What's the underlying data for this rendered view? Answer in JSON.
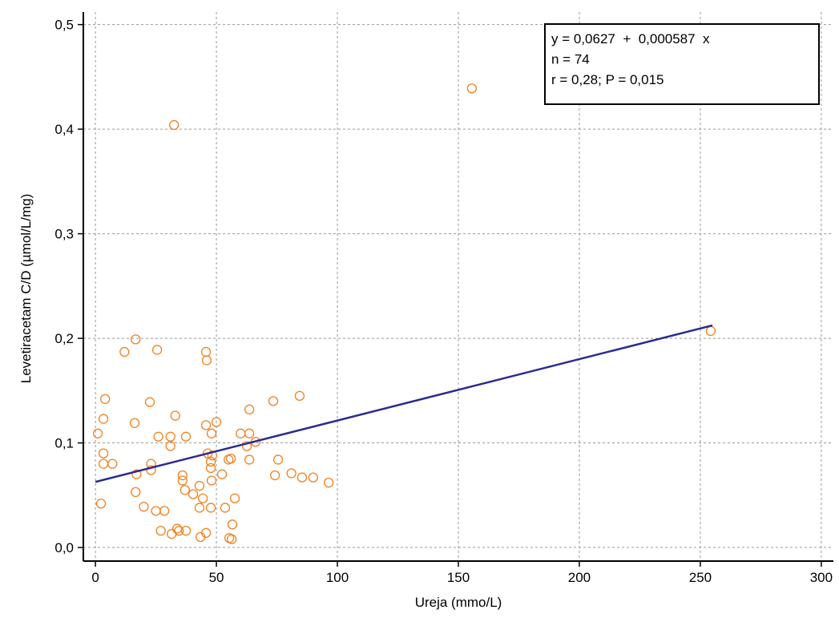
{
  "chart_data": {
    "type": "scatter",
    "x_label": "Ureja (mmo/L)",
    "y_label": "Levetiracetam C/D (µmol/L/mg)",
    "xlim": [
      -5,
      305
    ],
    "ylim": [
      -0.013,
      0.512
    ],
    "xticks": [
      0,
      50,
      100,
      150,
      200,
      250,
      300
    ],
    "yticks": [
      {
        "value": 0,
        "label": "0,0"
      },
      {
        "value": 0.1,
        "label": "0,1"
      },
      {
        "value": 0.2,
        "label": "0,2"
      },
      {
        "value": 0.3,
        "label": "0,3"
      },
      {
        "value": 0.4,
        "label": "0,4"
      },
      {
        "value": 0.5,
        "label": "0,5"
      }
    ],
    "grid": true,
    "series": [
      {
        "color": "#f08020",
        "x": [
          1,
          2.3,
          3.3,
          4,
          3.3,
          3.3,
          7,
          12,
          16.6,
          16.2,
          16.6,
          17,
          20,
          22.5,
          23,
          23,
          25.5,
          26,
          25,
          28.5,
          27,
          31,
          31,
          31.5,
          33,
          32.5,
          34.5,
          36,
          36,
          37.4,
          37,
          37.4,
          40.4,
          43,
          43,
          43.4,
          44.4,
          45.7,
          45.7,
          46,
          45.7,
          46.4,
          47.7,
          47.7,
          47.7,
          48,
          48,
          50,
          52.3,
          53.6,
          55,
          56,
          55.3,
          56.6,
          56.3,
          57.6,
          60,
          62.6,
          63.6,
          63.6,
          63.6,
          66.2,
          73.5,
          74.2,
          75.5,
          81,
          84.4,
          85.4,
          90,
          96.4,
          155.6,
          254.3,
          48.3,
          33.8
        ],
        "values": [
          0.109,
          0.042,
          0.123,
          0.142,
          0.09,
          0.08,
          0.08,
          0.187,
          0.199,
          0.119,
          0.053,
          0.07,
          0.039,
          0.139,
          0.08,
          0.074,
          0.189,
          0.106,
          0.035,
          0.035,
          0.016,
          0.106,
          0.097,
          0.013,
          0.126,
          0.404,
          0.016,
          0.069,
          0.064,
          0.106,
          0.055,
          0.016,
          0.051,
          0.059,
          0.038,
          0.01,
          0.047,
          0.014,
          0.187,
          0.179,
          0.117,
          0.09,
          0.038,
          0.082,
          0.076,
          0.064,
          0.109,
          0.12,
          0.07,
          0.038,
          0.084,
          0.085,
          0.009,
          0.022,
          0.008,
          0.047,
          0.109,
          0.097,
          0.109,
          0.132,
          0.084,
          0.101,
          0.14,
          0.069,
          0.084,
          0.071,
          0.145,
          0.067,
          0.067,
          0.062,
          0.439,
          0.207,
          0.088,
          0.018
        ]
      }
    ],
    "fit": {
      "intercept": 0.0627,
      "slope": 0.000587,
      "x_range": [
        0,
        255
      ],
      "color": "#2b2b8f"
    },
    "annotation": [
      "y = 0,0627  +  0,000587  x",
      "n = 74",
      "r = 0,28; P = 0,015"
    ]
  }
}
